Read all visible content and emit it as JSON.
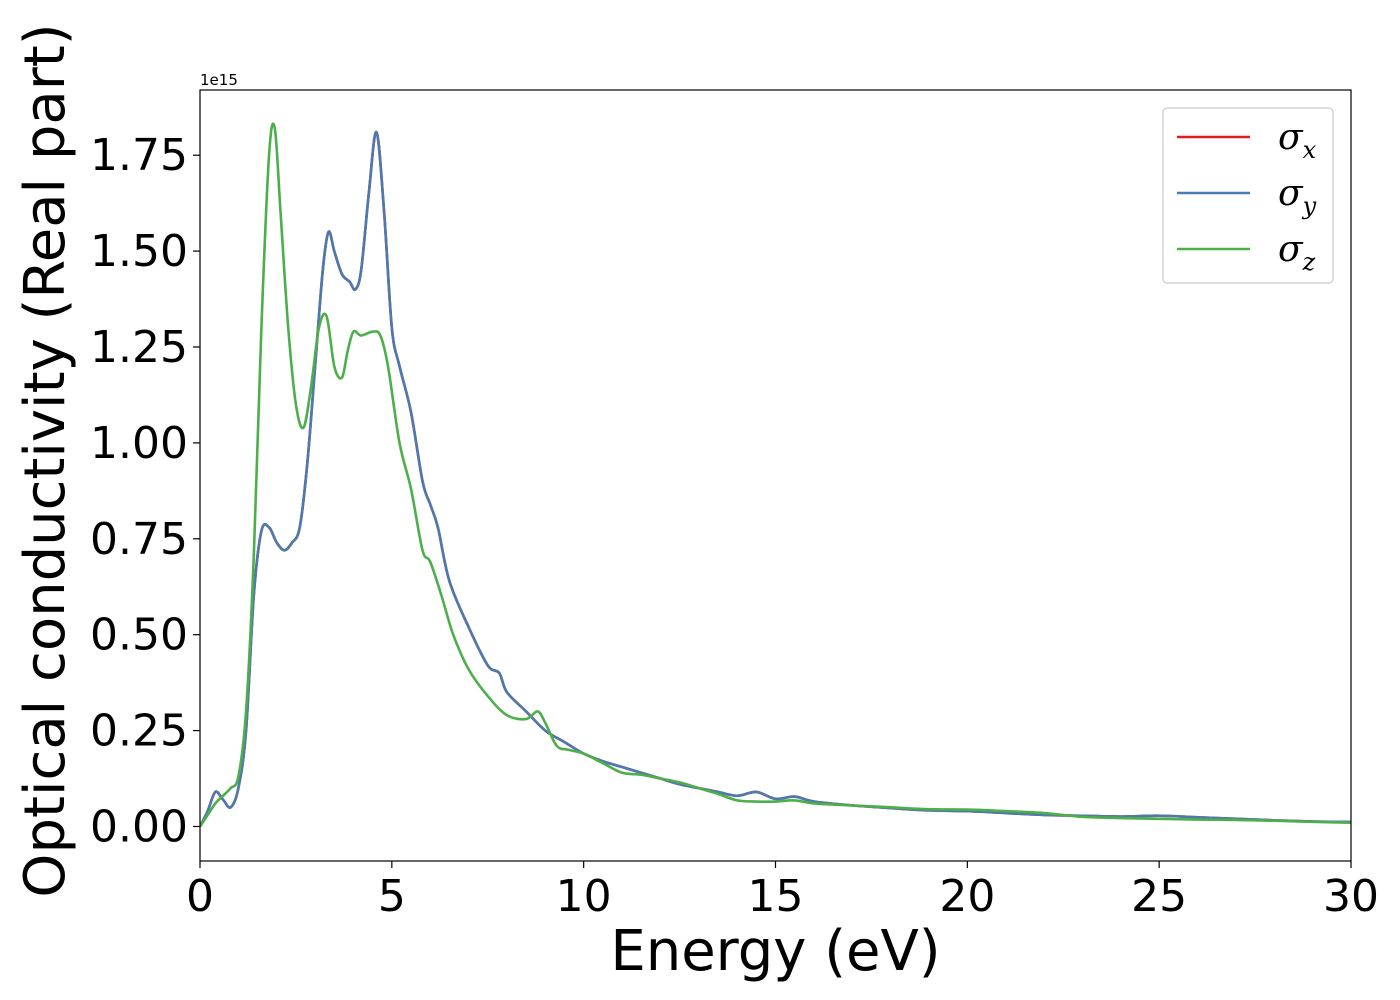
{
  "chart_data": {
    "type": "line",
    "xlabel": "Energy (eV)",
    "ylabel": "Optical conductivity (Real part)",
    "y_offset_text": "1e15",
    "y_multiplier": 1000000000000000.0,
    "xlim": [
      0,
      30
    ],
    "ylim": [
      -0.09,
      1.92
    ],
    "xticks": [
      0,
      5,
      10,
      15,
      20,
      25,
      30
    ],
    "xtick_labels": [
      "0",
      "5",
      "10",
      "15",
      "20",
      "25",
      "30"
    ],
    "yticks": [
      0.0,
      0.25,
      0.5,
      0.75,
      1.0,
      1.25,
      1.5,
      1.75
    ],
    "ytick_labels": [
      "0.00",
      "0.25",
      "0.50",
      "0.75",
      "1.00",
      "1.25",
      "1.50",
      "1.75"
    ],
    "grid": false,
    "legend_position": "top-right",
    "series": [
      {
        "name": "σx",
        "symbol": "σ",
        "subscript": "x",
        "color": "#e41a1c",
        "x": [
          0,
          0.2,
          0.4,
          0.6,
          0.8,
          1.0,
          1.2,
          1.4,
          1.6,
          1.8,
          2.0,
          2.2,
          2.4,
          2.6,
          2.8,
          3.0,
          3.2,
          3.35,
          3.5,
          3.7,
          3.9,
          4.05,
          4.2,
          4.4,
          4.6,
          4.8,
          5.0,
          5.2,
          5.5,
          5.8,
          6.0,
          6.2,
          6.5,
          7.0,
          7.5,
          7.8,
          8.0,
          8.5,
          9.0,
          9.5,
          10.0,
          10.5,
          11.0,
          11.5,
          12.0,
          12.5,
          13.0,
          13.5,
          14.0,
          14.5,
          15.0,
          15.5,
          16.0,
          17.0,
          18.0,
          19.0,
          20.0,
          21.0,
          22.0,
          23.0,
          24.0,
          25.0,
          26.0,
          27.0,
          28.0,
          29.0,
          30.0
        ],
        "y": [
          0.0,
          0.04,
          0.09,
          0.07,
          0.05,
          0.1,
          0.25,
          0.6,
          0.77,
          0.78,
          0.74,
          0.72,
          0.74,
          0.78,
          0.95,
          1.2,
          1.45,
          1.55,
          1.5,
          1.44,
          1.42,
          1.4,
          1.45,
          1.65,
          1.81,
          1.6,
          1.3,
          1.2,
          1.08,
          0.9,
          0.84,
          0.78,
          0.64,
          0.52,
          0.42,
          0.4,
          0.35,
          0.3,
          0.25,
          0.22,
          0.19,
          0.17,
          0.155,
          0.14,
          0.125,
          0.11,
          0.1,
          0.09,
          0.08,
          0.09,
          0.072,
          0.078,
          0.065,
          0.055,
          0.048,
          0.042,
          0.04,
          0.035,
          0.03,
          0.028,
          0.026,
          0.028,
          0.024,
          0.02,
          0.016,
          0.013,
          0.012
        ]
      },
      {
        "name": "σy",
        "symbol": "σ",
        "subscript": "y",
        "color": "#4a7ab0",
        "x": [
          0,
          0.2,
          0.4,
          0.6,
          0.8,
          1.0,
          1.2,
          1.4,
          1.6,
          1.8,
          2.0,
          2.2,
          2.4,
          2.6,
          2.8,
          3.0,
          3.2,
          3.35,
          3.5,
          3.7,
          3.9,
          4.05,
          4.2,
          4.4,
          4.6,
          4.8,
          5.0,
          5.2,
          5.5,
          5.8,
          6.0,
          6.2,
          6.5,
          7.0,
          7.5,
          7.8,
          8.0,
          8.5,
          9.0,
          9.5,
          10.0,
          10.5,
          11.0,
          11.5,
          12.0,
          12.5,
          13.0,
          13.5,
          14.0,
          14.5,
          15.0,
          15.5,
          16.0,
          17.0,
          18.0,
          19.0,
          20.0,
          21.0,
          22.0,
          23.0,
          24.0,
          25.0,
          26.0,
          27.0,
          28.0,
          29.0,
          30.0
        ],
        "y": [
          0.0,
          0.04,
          0.09,
          0.07,
          0.05,
          0.1,
          0.25,
          0.6,
          0.77,
          0.78,
          0.74,
          0.72,
          0.74,
          0.78,
          0.95,
          1.2,
          1.45,
          1.55,
          1.5,
          1.44,
          1.42,
          1.4,
          1.45,
          1.65,
          1.81,
          1.6,
          1.3,
          1.2,
          1.08,
          0.9,
          0.84,
          0.78,
          0.64,
          0.52,
          0.42,
          0.4,
          0.35,
          0.3,
          0.25,
          0.22,
          0.19,
          0.17,
          0.155,
          0.14,
          0.125,
          0.11,
          0.1,
          0.09,
          0.08,
          0.09,
          0.072,
          0.078,
          0.065,
          0.055,
          0.048,
          0.042,
          0.04,
          0.035,
          0.03,
          0.028,
          0.026,
          0.028,
          0.024,
          0.02,
          0.016,
          0.013,
          0.012
        ]
      },
      {
        "name": "σz",
        "symbol": "σ",
        "subscript": "z",
        "color": "#4daf4a",
        "x": [
          0,
          0.2,
          0.4,
          0.6,
          0.8,
          1.0,
          1.2,
          1.4,
          1.6,
          1.8,
          1.95,
          2.1,
          2.3,
          2.5,
          2.7,
          2.9,
          3.1,
          3.3,
          3.5,
          3.7,
          3.85,
          4.0,
          4.2,
          4.5,
          4.7,
          4.9,
          5.2,
          5.5,
          5.8,
          6.0,
          6.3,
          6.6,
          7.0,
          7.5,
          8.0,
          8.5,
          8.8,
          9.0,
          9.3,
          9.6,
          10.0,
          10.5,
          11.0,
          11.5,
          12.0,
          12.5,
          13.0,
          13.5,
          14.0,
          14.5,
          15.0,
          15.5,
          16.0,
          17.0,
          18.0,
          19.0,
          20.0,
          21.0,
          22.0,
          23.0,
          24.0,
          25.0,
          26.0,
          27.0,
          28.0,
          29.0,
          30.0
        ],
        "y": [
          0.0,
          0.03,
          0.06,
          0.08,
          0.1,
          0.13,
          0.3,
          0.7,
          1.3,
          1.75,
          1.82,
          1.6,
          1.3,
          1.1,
          1.04,
          1.15,
          1.3,
          1.33,
          1.2,
          1.17,
          1.24,
          1.29,
          1.28,
          1.29,
          1.28,
          1.2,
          1.0,
          0.88,
          0.72,
          0.69,
          0.6,
          0.5,
          0.41,
          0.34,
          0.29,
          0.28,
          0.3,
          0.27,
          0.21,
          0.2,
          0.19,
          0.165,
          0.14,
          0.135,
          0.125,
          0.115,
          0.1,
          0.085,
          0.068,
          0.065,
          0.065,
          0.068,
          0.06,
          0.055,
          0.05,
          0.045,
          0.044,
          0.04,
          0.035,
          0.025,
          0.022,
          0.02,
          0.018,
          0.017,
          0.015,
          0.012,
          0.01
        ]
      }
    ]
  }
}
